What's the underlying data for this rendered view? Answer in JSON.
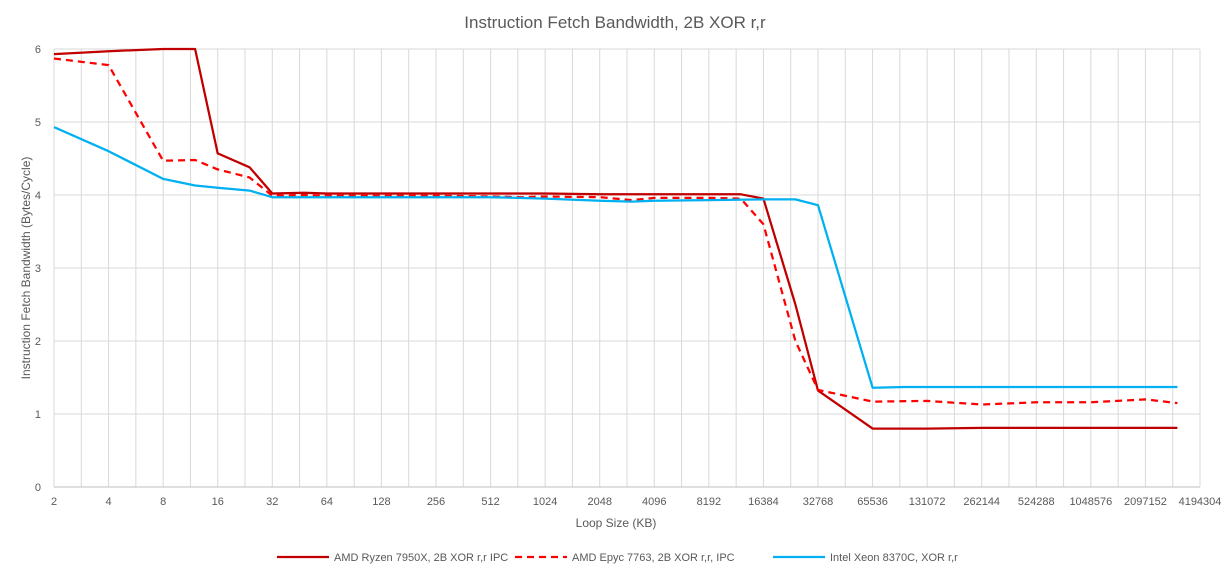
{
  "chart_data": {
    "type": "line",
    "title": "Instruction Fetch Bandwidth, 2B XOR r,r",
    "xlabel": "Loop Size (KB)",
    "ylabel": "Instruction Fetch Bandwidth (Bytes/Cycle)",
    "x_scale": "log2",
    "xlim_log2": [
      1,
      22
    ],
    "ylim": [
      0,
      6
    ],
    "grid": true,
    "legend_position": "bottom",
    "x_ticks": [
      2,
      4,
      8,
      16,
      32,
      64,
      128,
      256,
      512,
      1024,
      2048,
      4096,
      8192,
      16384,
      32768,
      65536,
      131072,
      262144,
      524288,
      1048576,
      2097152,
      4194304
    ],
    "y_ticks": [
      0,
      1,
      2,
      3,
      4,
      5,
      6
    ],
    "series": [
      {
        "name": "AMD Ryzen 7950X, 2B XOR r,r IPC",
        "color": "#c00000",
        "dash": "solid",
        "points": [
          [
            2,
            5.93
          ],
          [
            4,
            5.97
          ],
          [
            8,
            6.0
          ],
          [
            12,
            6.0
          ],
          [
            16,
            4.57
          ],
          [
            24,
            4.38
          ],
          [
            32,
            4.02
          ],
          [
            48,
            4.03
          ],
          [
            64,
            4.02
          ],
          [
            128,
            4.02
          ],
          [
            256,
            4.02
          ],
          [
            512,
            4.02
          ],
          [
            1024,
            4.02
          ],
          [
            2048,
            4.01
          ],
          [
            4096,
            4.01
          ],
          [
            8192,
            4.01
          ],
          [
            12288,
            4.01
          ],
          [
            16384,
            3.95
          ],
          [
            24576,
            2.5
          ],
          [
            32768,
            1.32
          ],
          [
            65536,
            0.8
          ],
          [
            131072,
            0.8
          ],
          [
            262144,
            0.81
          ],
          [
            524288,
            0.81
          ],
          [
            1048576,
            0.81
          ],
          [
            2097152,
            0.81
          ],
          [
            3145728,
            0.81
          ]
        ]
      },
      {
        "name": "AMD Epyc 7763, 2B XOR r,r, IPC",
        "color": "#ff0000",
        "dash": "dashed",
        "points": [
          [
            2,
            5.87
          ],
          [
            4,
            5.78
          ],
          [
            8,
            4.47
          ],
          [
            12,
            4.48
          ],
          [
            16,
            4.35
          ],
          [
            24,
            4.24
          ],
          [
            32,
            3.99
          ],
          [
            48,
            4.0
          ],
          [
            64,
            3.99
          ],
          [
            128,
            3.99
          ],
          [
            256,
            3.99
          ],
          [
            512,
            3.98
          ],
          [
            768,
            3.97
          ],
          [
            1024,
            3.98
          ],
          [
            2048,
            3.97
          ],
          [
            3072,
            3.93
          ],
          [
            4096,
            3.96
          ],
          [
            8192,
            3.96
          ],
          [
            12288,
            3.95
          ],
          [
            16384,
            3.6
          ],
          [
            24576,
            2.0
          ],
          [
            32768,
            1.33
          ],
          [
            65536,
            1.17
          ],
          [
            131072,
            1.18
          ],
          [
            262144,
            1.13
          ],
          [
            524288,
            1.16
          ],
          [
            1048576,
            1.16
          ],
          [
            2097152,
            1.2
          ],
          [
            3145728,
            1.15
          ]
        ]
      },
      {
        "name": "Intel Xeon 8370C, XOR r,r",
        "color": "#00b0f0",
        "dash": "solid",
        "points": [
          [
            2,
            4.93
          ],
          [
            4,
            4.6
          ],
          [
            8,
            4.22
          ],
          [
            12,
            4.13
          ],
          [
            16,
            4.1
          ],
          [
            24,
            4.06
          ],
          [
            32,
            3.97
          ],
          [
            64,
            3.97
          ],
          [
            128,
            3.97
          ],
          [
            256,
            3.97
          ],
          [
            512,
            3.97
          ],
          [
            1024,
            3.95
          ],
          [
            2048,
            3.92
          ],
          [
            3072,
            3.91
          ],
          [
            4096,
            3.92
          ],
          [
            8192,
            3.93
          ],
          [
            16384,
            3.94
          ],
          [
            24576,
            3.94
          ],
          [
            32768,
            3.86
          ],
          [
            65536,
            1.36
          ],
          [
            98304,
            1.37
          ],
          [
            131072,
            1.37
          ],
          [
            262144,
            1.37
          ],
          [
            524288,
            1.37
          ],
          [
            1048576,
            1.37
          ],
          [
            2097152,
            1.37
          ],
          [
            3145728,
            1.37
          ]
        ]
      }
    ]
  }
}
